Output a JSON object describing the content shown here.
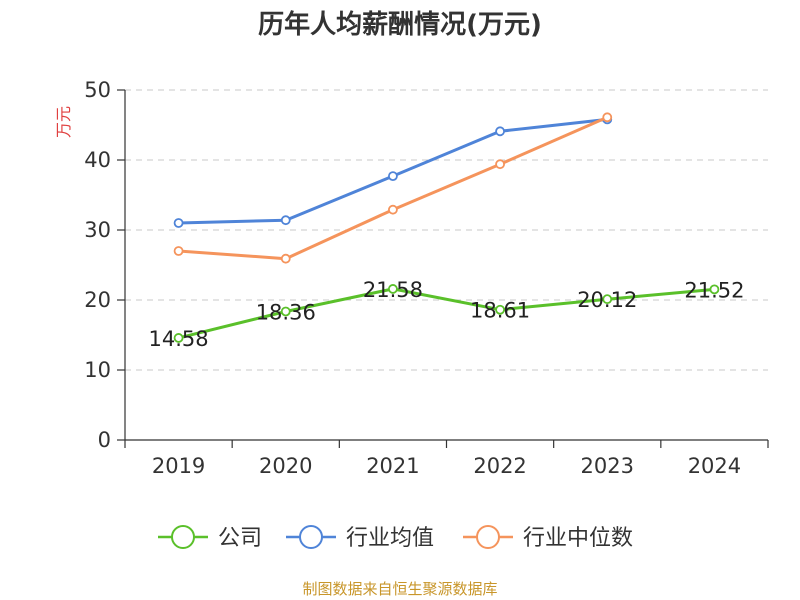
{
  "chart_data": {
    "type": "line",
    "title": "历年人均薪酬情况(万元)",
    "ylabel": "万元",
    "xlabel": "",
    "categories": [
      "2019",
      "2020",
      "2021",
      "2022",
      "2023",
      "2024"
    ],
    "ylim": [
      0,
      50
    ],
    "yticks": [
      0,
      10,
      20,
      30,
      40,
      50
    ],
    "grid": true,
    "legend_position": "bottom",
    "series": [
      {
        "name": "公司",
        "color": "#5ac02a",
        "values": [
          14.58,
          18.36,
          21.58,
          18.61,
          20.12,
          21.52
        ],
        "labels": [
          "14.58",
          "18.36",
          "21.58",
          "18.61",
          "20.12",
          "21.52"
        ]
      },
      {
        "name": "行业均值",
        "color": "#4f84d8",
        "values": [
          31.0,
          31.4,
          37.7,
          44.1,
          45.8,
          null
        ]
      },
      {
        "name": "行业中位数",
        "color": "#f5945c",
        "values": [
          27.0,
          25.9,
          32.9,
          39.4,
          46.1,
          null
        ]
      }
    ]
  },
  "footer": "制图数据来自恒生聚源数据库"
}
